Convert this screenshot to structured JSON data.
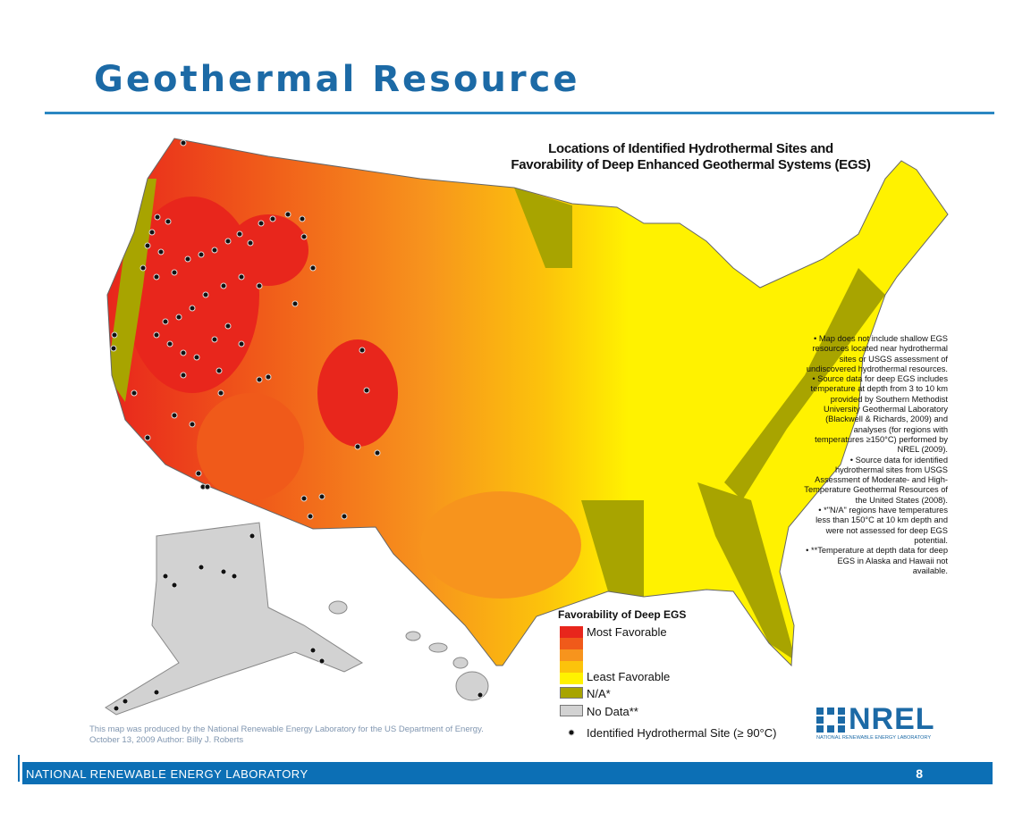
{
  "header": {
    "title": "Geothermal Resource"
  },
  "map": {
    "title": [
      "Locations of Identified Hydrothermal Sites and",
      "Favorability of Deep Enhanced Geothermal Systems (EGS)"
    ],
    "notes": [
      "Map does not include shallow EGS resources located near hydrothermal sites or USGS assessment of undiscovered hydrothermal resources.",
      "Source data for deep EGS includes temperature at depth from 3 to 10 km provided by Southern Methodist University Geothermal Laboratory (Blackwell & Richards, 2009) and analyses (for regions with temperatures ≥150°C) performed by NREL (2009).",
      "Source data for identified hydrothermal sites from USGS Assessment of Moderate- and High-Temperature Geothermal Resources of the United States (2008).",
      "*\"N/A\" regions have temperatures less than 150°C at 10 km depth and were not assessed for deep EGS potential.",
      "**Temperature at depth data for deep EGS in Alaska and Hawaii not available."
    ],
    "legend": {
      "title": "Favorability of Deep EGS",
      "scale": {
        "colors": [
          "#e8261c",
          "#f05a1a",
          "#f7941d",
          "#fcc30b",
          "#fff200"
        ],
        "high_label": "Most Favorable",
        "low_label": "Least Favorable"
      },
      "items": [
        {
          "label": "N/A*",
          "color": "#a8a400"
        },
        {
          "label": "No Data**",
          "color": "#d2d2d2"
        }
      ],
      "site_label": "Identified Hydrothermal Site (≥ 90°C)"
    },
    "credit": [
      "This map was produced by the National Renewable Energy Laboratory for the US Department of Energy.",
      "October 13, 2009 Author: Billy J. Roberts"
    ],
    "logo": {
      "name": "NREL",
      "subtitle": "NATIONAL RENEWABLE ENERGY LABORATORY"
    }
  },
  "footer": {
    "organization": "NATIONAL RENEWABLE ENERGY LABORATORY",
    "page": "8"
  }
}
